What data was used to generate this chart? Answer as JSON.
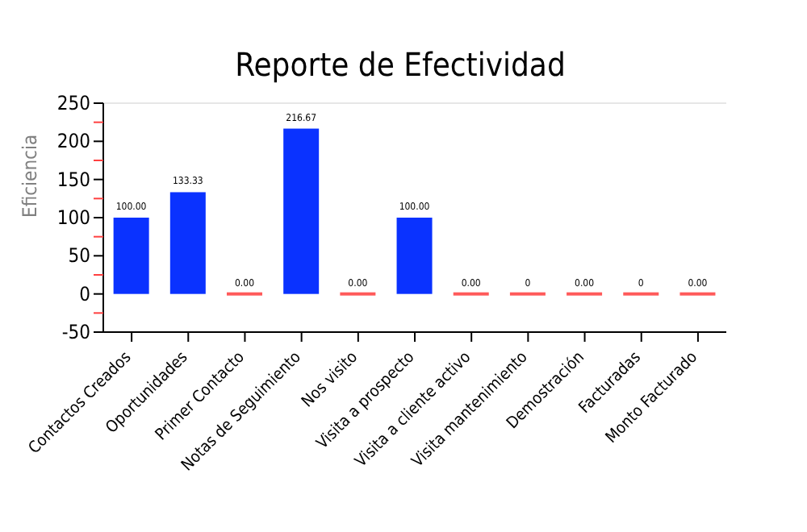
{
  "chart_data": {
    "type": "bar",
    "title": "Reporte de Efectividad",
    "ylabel": "Eficiencia",
    "categories": [
      "Contactos Creados",
      "Oportunidades",
      "Primer Contacto",
      "Notas de Seguimiento",
      "Nos visito",
      "Visita a prospecto",
      "Visita a cliente activo",
      "Visita mantenimiento",
      "Demostración",
      "Facturadas",
      "Monto Facturado"
    ],
    "values": [
      100,
      133.33,
      0,
      216.67,
      0,
      100,
      0,
      0,
      0,
      0,
      0
    ],
    "colors": [
      "#0a32ff",
      "#0a32ff",
      "#ff5a5a",
      "#0a32ff",
      "#ff5a5a",
      "#0a32ff",
      "#ff5a5a",
      "#ff5a5a",
      "#ff5a5a",
      "#ff5a5a",
      "#ff5a5a"
    ],
    "value_labels": [
      "100.00",
      "133.33",
      "0.00",
      "216.67",
      "0.00",
      "100.00",
      "0.00",
      "0",
      "0.00",
      "0",
      "0.00"
    ],
    "ylim": [
      -50,
      250
    ],
    "yticks": [
      -50,
      {
        "value": -25,
        "label": null
      },
      0,
      {
        "value": 25,
        "label": null
      },
      50,
      {
        "value": 75,
        "label": null
      },
      100,
      {
        "value": 125,
        "label": null
      },
      150,
      {
        "value": 175,
        "label": null
      },
      200,
      {
        "value": 225,
        "label": null
      },
      250
    ],
    "grid": false
  }
}
